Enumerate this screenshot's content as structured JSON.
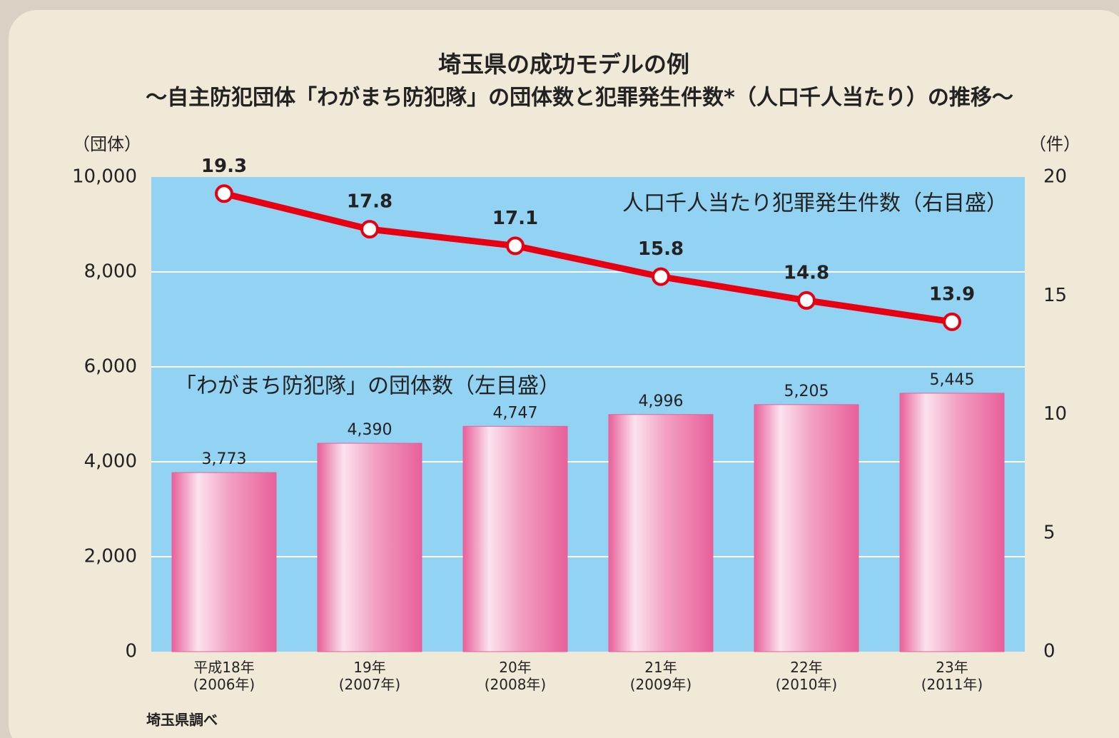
{
  "chart_data": {
    "type": "bar_line",
    "title": "埼玉県の成功モデルの例",
    "subtitle": "～自主防犯団体「わがまち防犯隊」の団体数と犯罪発生件数*（人口千人当たり）の推移～",
    "y_label": "（団体）",
    "y2_label": "（件）",
    "source": "埼玉県調べ",
    "categories": [
      "平成18年\n(2006年)",
      "19年\n(2007年)",
      "20年\n(2008年)",
      "21年\n(2009年)",
      "22年\n(2010年)",
      "23年\n(2011年)"
    ],
    "series": [
      {
        "name": "「わがまち防犯隊」の団体数（左目盛）",
        "type": "bar",
        "color": "#e8609a",
        "values": [
          3773,
          4390,
          4747,
          4996,
          5205,
          5445
        ],
        "value_labels": [
          "3,773",
          "4,390",
          "4,747",
          "4,996",
          "5,205",
          "5,445"
        ]
      },
      {
        "name": "人口千人当たり犯罪発生件数（右目盛）",
        "type": "line",
        "axis": "y2",
        "color": "#e60012",
        "values": [
          19.3,
          17.8,
          17.1,
          15.8,
          14.8,
          13.9
        ]
      }
    ],
    "ylim": [
      0,
      10000
    ],
    "yticks": [
      0,
      {
        "value": 2000,
        "label": "2,000"
      },
      {
        "value": 4000,
        "label": "4,000"
      },
      {
        "value": 6000,
        "label": "6,000"
      },
      {
        "value": 8000,
        "label": "8,000"
      },
      {
        "value": 10000,
        "label": "10,000"
      }
    ],
    "y2lim": [
      0,
      20
    ],
    "y2ticks": [
      0,
      5,
      10,
      15,
      20
    ],
    "grid": true
  }
}
